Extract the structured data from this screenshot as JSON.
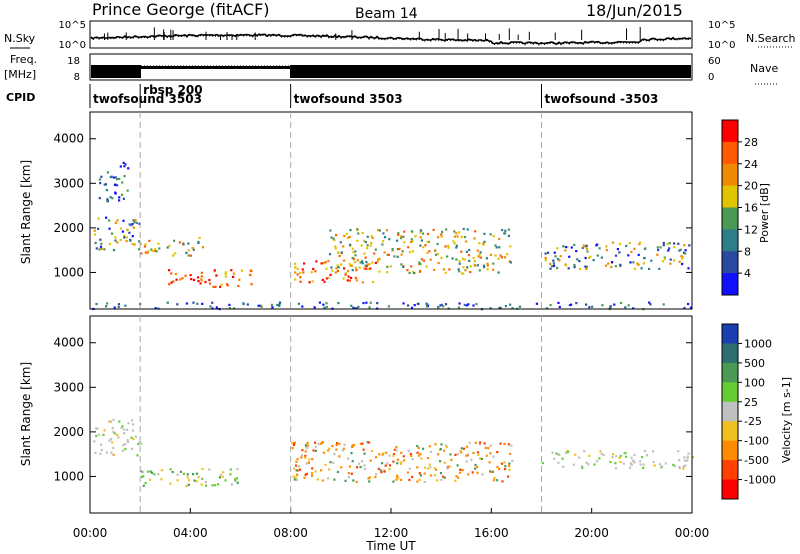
{
  "header": {
    "station": "Prince George (fitACF)",
    "beam": "Beam 14",
    "date": "18/Jun/2015"
  },
  "noise_panel": {
    "left_label": "N.Sky",
    "right_label": "N.Search",
    "left_ticks": [
      "10^5",
      "10^0"
    ],
    "right_ticks": [
      "10^5",
      "10^0"
    ]
  },
  "freq_panel": {
    "label_top": "Freq.",
    "label_bottom": "[MHz]",
    "left_ticks": [
      "18",
      "8"
    ],
    "right_ticks": [
      "60",
      "0"
    ],
    "right_label": "Nave"
  },
  "cpid": {
    "label": "CPID",
    "entries": [
      {
        "name": "twofsound 3503",
        "start_hour": 0
      },
      {
        "name": "rbsp 200",
        "start_hour": 2
      },
      {
        "name": "twofsound 3503",
        "start_hour": 8
      },
      {
        "name": "twofsound -3503",
        "start_hour": 18
      }
    ]
  },
  "x_axis": {
    "label": "Time UT",
    "tick_labels": [
      "00:00",
      "04:00",
      "08:00",
      "12:00",
      "16:00",
      "20:00",
      "00:00"
    ],
    "tick_hours": [
      0,
      4,
      8,
      12,
      16,
      20,
      24
    ]
  },
  "chart_data": [
    {
      "type": "heatmap",
      "title": "",
      "xlabel": "Time UT",
      "ylabel": "Slant Range [km]",
      "xlim": [
        0,
        24
      ],
      "ylim": [
        180,
        4600
      ],
      "yticks": [
        1000,
        2000,
        3000,
        4000
      ],
      "colorbar": {
        "label": "Power [dB]",
        "ticks": [
          "28",
          "24",
          "20",
          "16",
          "12",
          "8",
          "4"
        ],
        "colors": [
          "#ff0000",
          "#ff5a00",
          "#f08a00",
          "#e0c400",
          "#4a9a55",
          "#2e7e8a",
          "#2a4aa0",
          "#1010ff"
        ]
      },
      "regions": [
        {
          "t0": 0.1,
          "t1": 2.0,
          "r0": 1500,
          "r1": 2300,
          "level": "mixed-low"
        },
        {
          "t0": 0.3,
          "t1": 1.5,
          "r0": 2600,
          "r1": 3500,
          "level": "low"
        },
        {
          "t0": 2.0,
          "t1": 4.5,
          "r0": 1400,
          "r1": 1800,
          "level": "mid"
        },
        {
          "t0": 3.0,
          "t1": 6.5,
          "r0": 700,
          "r1": 1100,
          "level": "high"
        },
        {
          "t0": 8.0,
          "t1": 11.5,
          "r0": 800,
          "r1": 1300,
          "level": "high"
        },
        {
          "t0": 9.5,
          "t1": 16.8,
          "r0": 1000,
          "r1": 2000,
          "level": "mid"
        },
        {
          "t0": 18.0,
          "t1": 24.0,
          "r0": 1100,
          "r1": 1700,
          "level": "mixed-low"
        },
        {
          "t0": 0.0,
          "t1": 24.0,
          "r0": 200,
          "r1": 350,
          "level": "low"
        }
      ]
    },
    {
      "type": "heatmap",
      "title": "",
      "xlabel": "Time UT",
      "ylabel": "Slant Range [km]",
      "xlim": [
        0,
        24
      ],
      "ylim": [
        180,
        4600
      ],
      "yticks": [
        1000,
        2000,
        3000,
        4000
      ],
      "colorbar": {
        "label": "Velocity [m s-1]",
        "ticks": [
          "1000",
          "500",
          "100",
          "25",
          "-25",
          "-100",
          "-500",
          "-1000"
        ],
        "colors": [
          "#1a3fb0",
          "#2e6e70",
          "#4a9a55",
          "#66cc33",
          "#c0c0c0",
          "#f0c020",
          "#ff8c00",
          "#ff4000",
          "#ff0000"
        ]
      },
      "regions": [
        {
          "t0": 0.1,
          "t1": 2.0,
          "r0": 1500,
          "r1": 2300,
          "level": "ground"
        },
        {
          "t0": 2.0,
          "t1": 6.0,
          "r0": 800,
          "r1": 1200,
          "level": "slow-positive"
        },
        {
          "t0": 8.0,
          "t1": 16.8,
          "r0": 900,
          "r1": 1800,
          "level": "negative"
        },
        {
          "t0": 18.0,
          "t1": 24.0,
          "r0": 1200,
          "r1": 1600,
          "level": "ground"
        }
      ]
    }
  ]
}
